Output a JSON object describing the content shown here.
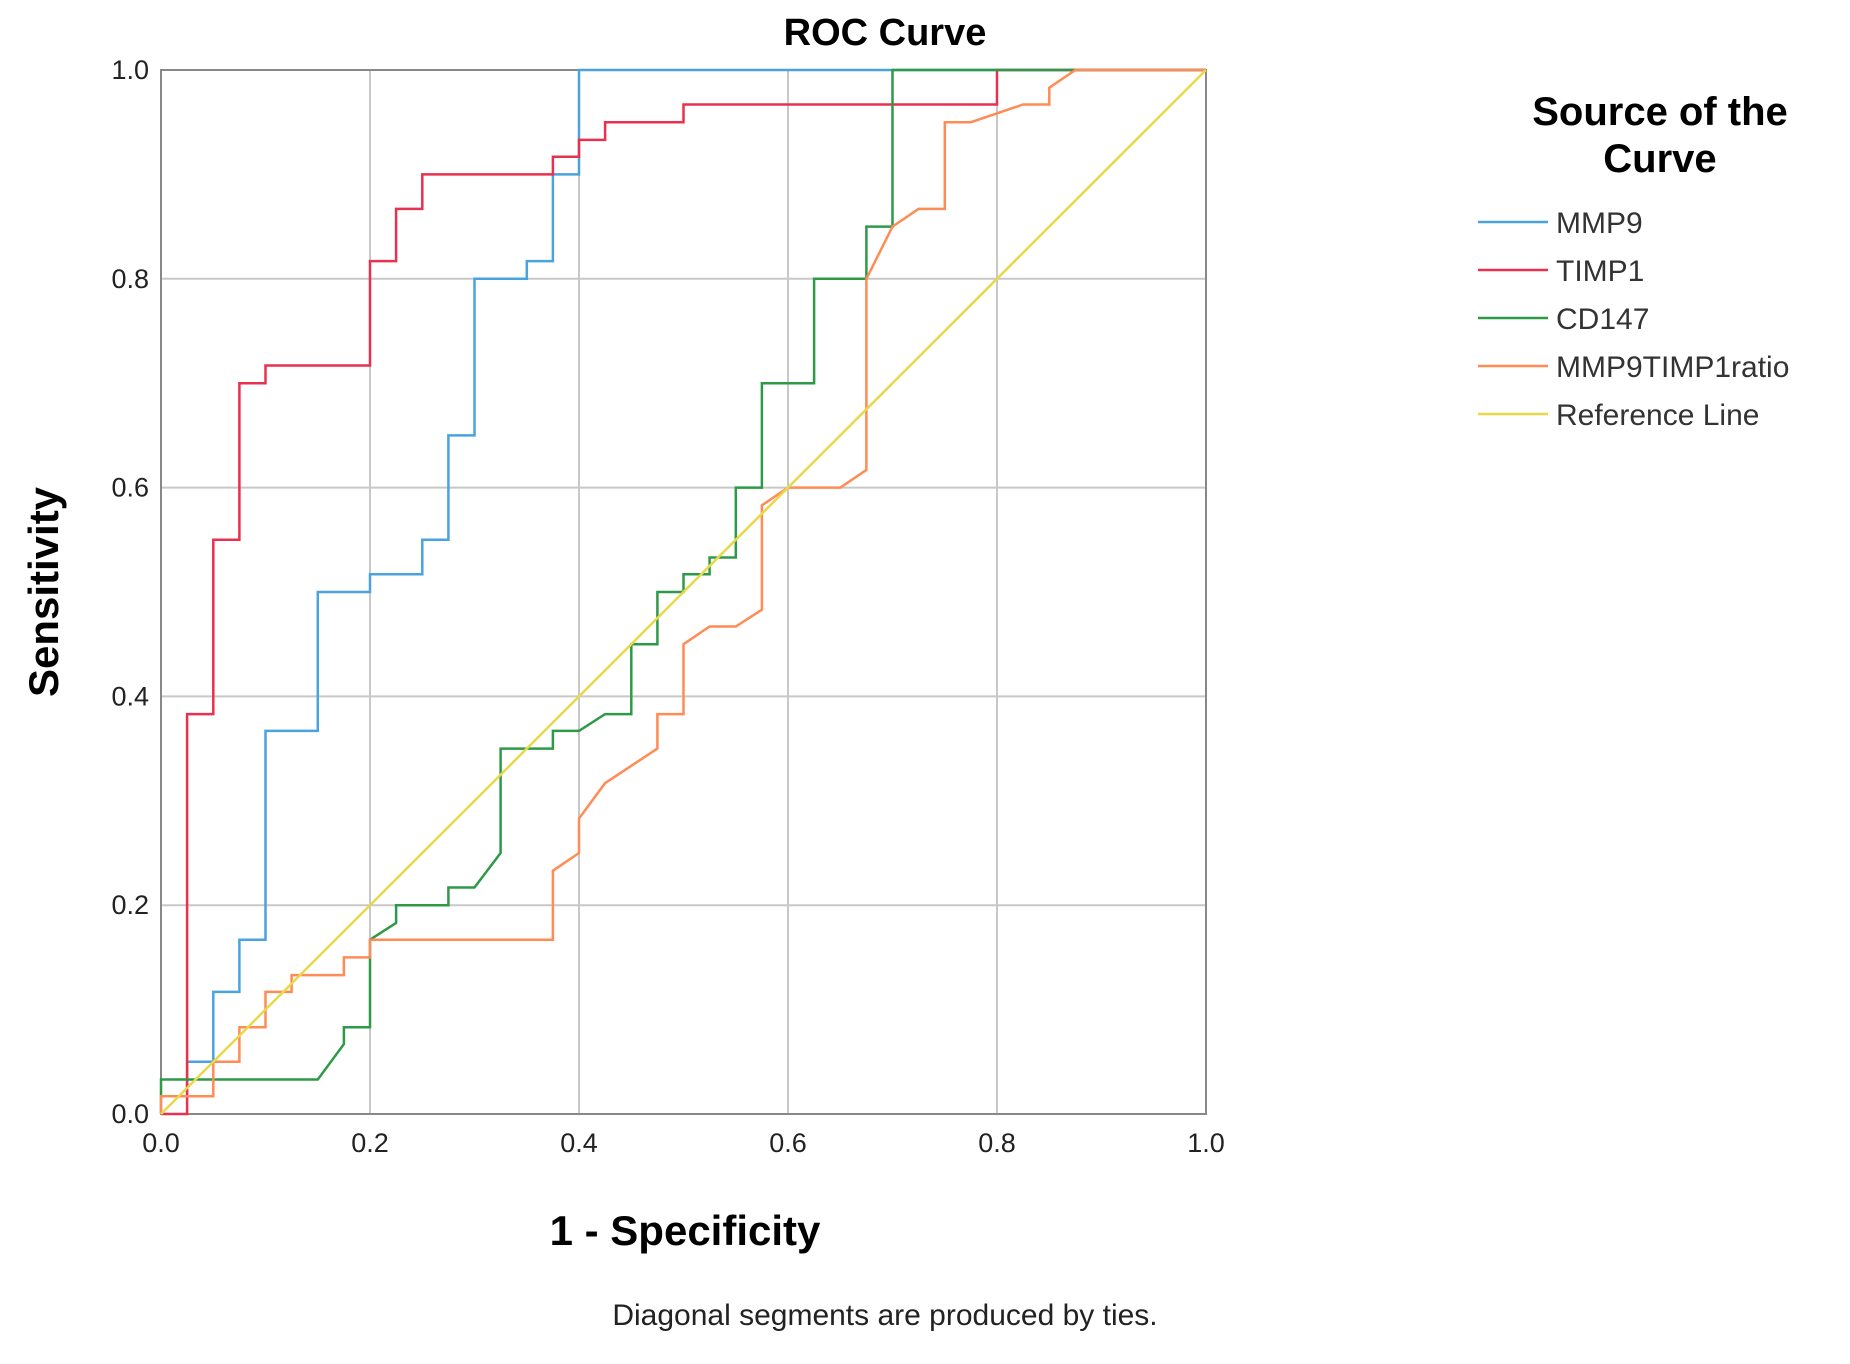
{
  "chart_data": {
    "type": "line",
    "title": "ROC Curve",
    "xlabel": "1 - Specificity",
    "ylabel": "Sensitivity",
    "xlim": [
      0,
      1
    ],
    "ylim": [
      0,
      1
    ],
    "x_ticks": [
      "0.0",
      "0.2",
      "0.4",
      "0.6",
      "0.8",
      "1.0"
    ],
    "y_ticks": [
      "0.0",
      "0.2",
      "0.4",
      "0.6",
      "0.8",
      "1.0"
    ],
    "grid": true,
    "legend": {
      "title_lines": [
        "Source of the",
        "Curve"
      ],
      "position": "right"
    },
    "footnote": "Diagonal segments are produced by ties.",
    "series": [
      {
        "name": "MMP9",
        "color": "#4aa3df",
        "points": [
          [
            0,
            0
          ],
          [
            0,
            0.017
          ],
          [
            0.025,
            0.017
          ],
          [
            0.025,
            0.05
          ],
          [
            0.05,
            0.05
          ],
          [
            0.05,
            0.117
          ],
          [
            0.075,
            0.117
          ],
          [
            0.075,
            0.167
          ],
          [
            0.1,
            0.167
          ],
          [
            0.1,
            0.367
          ],
          [
            0.15,
            0.367
          ],
          [
            0.15,
            0.5
          ],
          [
            0.2,
            0.5
          ],
          [
            0.2,
            0.517
          ],
          [
            0.25,
            0.517
          ],
          [
            0.25,
            0.55
          ],
          [
            0.275,
            0.55
          ],
          [
            0.275,
            0.65
          ],
          [
            0.3,
            0.65
          ],
          [
            0.3,
            0.8
          ],
          [
            0.35,
            0.8
          ],
          [
            0.35,
            0.817
          ],
          [
            0.375,
            0.817
          ],
          [
            0.375,
            0.9
          ],
          [
            0.4,
            0.9
          ],
          [
            0.4,
            1.0
          ],
          [
            1.0,
            1.0
          ]
        ]
      },
      {
        "name": "TIMP1",
        "color": "#e8304f",
        "points": [
          [
            0,
            0
          ],
          [
            0.025,
            0
          ],
          [
            0.025,
            0.383
          ],
          [
            0.05,
            0.383
          ],
          [
            0.05,
            0.55
          ],
          [
            0.075,
            0.55
          ],
          [
            0.075,
            0.7
          ],
          [
            0.1,
            0.7
          ],
          [
            0.1,
            0.717
          ],
          [
            0.2,
            0.717
          ],
          [
            0.2,
            0.817
          ],
          [
            0.225,
            0.817
          ],
          [
            0.225,
            0.867
          ],
          [
            0.25,
            0.867
          ],
          [
            0.25,
            0.9
          ],
          [
            0.375,
            0.9
          ],
          [
            0.375,
            0.917
          ],
          [
            0.4,
            0.917
          ],
          [
            0.4,
            0.933
          ],
          [
            0.425,
            0.933
          ],
          [
            0.425,
            0.95
          ],
          [
            0.5,
            0.95
          ],
          [
            0.5,
            0.967
          ],
          [
            0.8,
            0.967
          ],
          [
            0.8,
            1.0
          ],
          [
            1.0,
            1.0
          ]
        ]
      },
      {
        "name": "CD147",
        "color": "#2e9a48",
        "points": [
          [
            0,
            0.017
          ],
          [
            0,
            0.033
          ],
          [
            0.15,
            0.033
          ],
          [
            0.175,
            0.067
          ],
          [
            0.175,
            0.083
          ],
          [
            0.2,
            0.083
          ],
          [
            0.2,
            0.167
          ],
          [
            0.225,
            0.183
          ],
          [
            0.225,
            0.2
          ],
          [
            0.275,
            0.2
          ],
          [
            0.275,
            0.217
          ],
          [
            0.3,
            0.217
          ],
          [
            0.325,
            0.25
          ],
          [
            0.325,
            0.35
          ],
          [
            0.375,
            0.35
          ],
          [
            0.375,
            0.367
          ],
          [
            0.4,
            0.367
          ],
          [
            0.425,
            0.383
          ],
          [
            0.45,
            0.383
          ],
          [
            0.45,
            0.45
          ],
          [
            0.475,
            0.45
          ],
          [
            0.475,
            0.5
          ],
          [
            0.5,
            0.5
          ],
          [
            0.5,
            0.517
          ],
          [
            0.525,
            0.517
          ],
          [
            0.525,
            0.533
          ],
          [
            0.55,
            0.533
          ],
          [
            0.55,
            0.6
          ],
          [
            0.575,
            0.6
          ],
          [
            0.575,
            0.7
          ],
          [
            0.625,
            0.7
          ],
          [
            0.625,
            0.8
          ],
          [
            0.675,
            0.8
          ],
          [
            0.675,
            0.85
          ],
          [
            0.7,
            0.85
          ],
          [
            0.7,
            1.0
          ],
          [
            1.0,
            1.0
          ]
        ]
      },
      {
        "name": "MMP9TIMP1ratio",
        "color": "#ff8c55",
        "points": [
          [
            0,
            0
          ],
          [
            0,
            0.017
          ],
          [
            0.05,
            0.017
          ],
          [
            0.05,
            0.05
          ],
          [
            0.075,
            0.05
          ],
          [
            0.075,
            0.083
          ],
          [
            0.1,
            0.083
          ],
          [
            0.1,
            0.117
          ],
          [
            0.125,
            0.117
          ],
          [
            0.125,
            0.133
          ],
          [
            0.175,
            0.133
          ],
          [
            0.175,
            0.15
          ],
          [
            0.2,
            0.15
          ],
          [
            0.2,
            0.167
          ],
          [
            0.375,
            0.167
          ],
          [
            0.375,
            0.233
          ],
          [
            0.4,
            0.25
          ],
          [
            0.4,
            0.283
          ],
          [
            0.425,
            0.317
          ],
          [
            0.475,
            0.35
          ],
          [
            0.475,
            0.383
          ],
          [
            0.5,
            0.383
          ],
          [
            0.5,
            0.45
          ],
          [
            0.525,
            0.467
          ],
          [
            0.55,
            0.467
          ],
          [
            0.575,
            0.483
          ],
          [
            0.575,
            0.583
          ],
          [
            0.6,
            0.6
          ],
          [
            0.65,
            0.6
          ],
          [
            0.675,
            0.617
          ],
          [
            0.675,
            0.8
          ],
          [
            0.7,
            0.85
          ],
          [
            0.725,
            0.867
          ],
          [
            0.75,
            0.867
          ],
          [
            0.75,
            0.95
          ],
          [
            0.775,
            0.95
          ],
          [
            0.825,
            0.967
          ],
          [
            0.85,
            0.967
          ],
          [
            0.85,
            0.983
          ],
          [
            0.875,
            1.0
          ],
          [
            1.0,
            1.0
          ]
        ]
      },
      {
        "name": "Reference Line",
        "color": "#e8d84a",
        "points": [
          [
            0,
            0
          ],
          [
            1,
            1
          ]
        ]
      }
    ]
  }
}
